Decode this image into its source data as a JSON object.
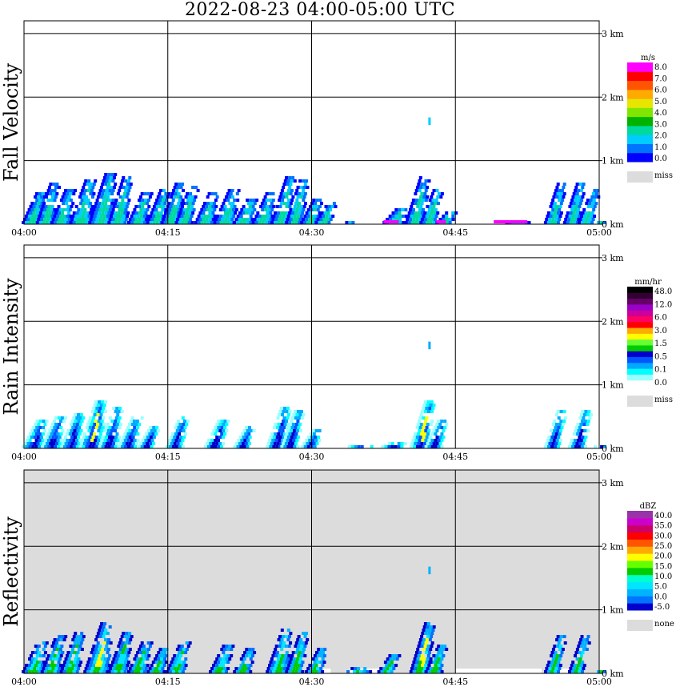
{
  "title": "2022-08-23  04:00-05:00 UTC",
  "chart_data": [
    {
      "type": "heatmap",
      "title": "Fall Velocity",
      "x_ticks": [
        "04:00",
        "04:15",
        "04:30",
        "04:45",
        "05:00"
      ],
      "y_ticks": [
        "0 km",
        "1 km",
        "2 km",
        "3 km"
      ],
      "ylim": [
        0,
        3.2
      ],
      "xlim_minutes": [
        0,
        60
      ],
      "grid": true,
      "background": "#ffffff",
      "legend": {
        "unit": "m/s",
        "placement": "right",
        "colors": [
          "#0000ff",
          "#0073ff",
          "#00ccff",
          "#00d99e",
          "#00b300",
          "#80e600",
          "#e6e600",
          "#ffaa00",
          "#ff5500",
          "#ff0000",
          "#ff00ff"
        ],
        "labels": [
          "0.0",
          "1.0",
          "2.0",
          "3.0",
          "4.0",
          "5.0",
          "6.0",
          "7.0",
          "8.0"
        ],
        "missing_label": "miss",
        "missing_color": "#dcdcdc"
      },
      "echo": {
        "colors": [
          "#0000ff",
          "#0073ff",
          "#00ccff",
          "#00d99e"
        ],
        "cap": "#ff00ff",
        "cells": [
          {
            "t": 0,
            "h": 0.55,
            "w": 1.2
          },
          {
            "t": 1.5,
            "h": 0.7,
            "w": 1.0
          },
          {
            "t": 3,
            "h": 0.6,
            "w": 1.2
          },
          {
            "t": 5,
            "h": 0.75,
            "w": 1.4
          },
          {
            "t": 7,
            "h": 0.85,
            "w": 1.6
          },
          {
            "t": 9,
            "h": 0.8,
            "w": 1.2
          },
          {
            "t": 11,
            "h": 0.55,
            "w": 1.2
          },
          {
            "t": 13,
            "h": 0.6,
            "w": 1.0
          },
          {
            "t": 14.5,
            "h": 0.7,
            "w": 1.2
          },
          {
            "t": 16,
            "h": 0.65,
            "w": 1.0
          },
          {
            "t": 18,
            "h": 0.55,
            "w": 1.2
          },
          {
            "t": 20,
            "h": 0.6,
            "w": 1.4
          },
          {
            "t": 22,
            "h": 0.45,
            "w": 1.2
          },
          {
            "t": 24,
            "h": 0.55,
            "w": 1.2
          },
          {
            "t": 26,
            "h": 0.8,
            "w": 1.2
          },
          {
            "t": 27.5,
            "h": 0.75,
            "w": 1.0
          },
          {
            "t": 29,
            "h": 0.45,
            "w": 1.0
          },
          {
            "t": 30.5,
            "h": 0.4,
            "w": 1.0
          },
          {
            "t": 33,
            "h": 0.08,
            "w": 0.4
          },
          {
            "t": 37.5,
            "h": 0.3,
            "w": 1.6
          },
          {
            "t": 40,
            "h": 0.8,
            "w": 1.2
          },
          {
            "t": 41.5,
            "h": 0.6,
            "w": 1.0
          },
          {
            "t": 43,
            "h": 0.25,
            "w": 1.0
          },
          {
            "t": 49,
            "h": 0.08,
            "w": 3.5
          },
          {
            "t": 54.5,
            "h": 0.7,
            "w": 0.8
          },
          {
            "t": 56.5,
            "h": 0.7,
            "w": 0.8
          },
          {
            "t": 58,
            "h": 0.6,
            "w": 0.8
          },
          {
            "t": 59,
            "h": 0.1,
            "w": 1.0
          }
        ],
        "isolated": [
          {
            "t": 42.3,
            "h": 1.62,
            "d": 0.12
          }
        ]
      }
    },
    {
      "type": "heatmap",
      "title": "Rain Intensity",
      "x_ticks": [
        "04:00",
        "04:15",
        "04:30",
        "04:45",
        "05:00"
      ],
      "y_ticks": [
        "0 km",
        "1 km",
        "2 km",
        "3 km"
      ],
      "ylim": [
        0,
        3.2
      ],
      "xlim_minutes": [
        0,
        60
      ],
      "grid": true,
      "background": "#ffffff",
      "legend": {
        "unit": "mm/hr",
        "placement": "right",
        "colors": [
          "#ffffff",
          "#99ffff",
          "#00ffff",
          "#00aaff",
          "#0055ff",
          "#0000cc",
          "#00cc00",
          "#66ff33",
          "#ffff00",
          "#ffaa00",
          "#ff0000",
          "#ff0066",
          "#cc0099",
          "#9900cc",
          "#660066",
          "#330033",
          "#000000"
        ],
        "labels": [
          "0.0",
          "0.1",
          "0.5",
          "1.5",
          "3.0",
          "6.0",
          "12.0",
          "48.0"
        ],
        "missing_label": "miss",
        "missing_color": "#dcdcdc"
      },
      "echo": {
        "colors": [
          "#99ffff",
          "#00ffff",
          "#00aaff",
          "#0055ff",
          "#0000cc"
        ],
        "core": "#ffff00",
        "cells": [
          {
            "t": 0,
            "h": 0.5,
            "w": 1.4
          },
          {
            "t": 2,
            "h": 0.55,
            "w": 1.2
          },
          {
            "t": 4,
            "h": 0.6,
            "w": 1.2
          },
          {
            "t": 6,
            "h": 0.8,
            "w": 1.6
          },
          {
            "t": 8,
            "h": 0.7,
            "w": 1.2
          },
          {
            "t": 10,
            "h": 0.55,
            "w": 1.2
          },
          {
            "t": 12,
            "h": 0.4,
            "w": 1.0
          },
          {
            "t": 15,
            "h": 0.55,
            "w": 1.0
          },
          {
            "t": 19,
            "h": 0.5,
            "w": 1.2
          },
          {
            "t": 22,
            "h": 0.4,
            "w": 1.0
          },
          {
            "t": 25.5,
            "h": 0.7,
            "w": 1.2
          },
          {
            "t": 27,
            "h": 0.65,
            "w": 1.0
          },
          {
            "t": 29,
            "h": 0.35,
            "w": 1.0
          },
          {
            "t": 33,
            "h": 0.1,
            "w": 3.0
          },
          {
            "t": 37,
            "h": 0.15,
            "w": 2.0
          },
          {
            "t": 40.5,
            "h": 0.8,
            "w": 1.2
          },
          {
            "t": 42,
            "h": 0.5,
            "w": 1.0
          },
          {
            "t": 45,
            "h": 0.05,
            "w": 8.0
          },
          {
            "t": 54.5,
            "h": 0.65,
            "w": 0.8
          },
          {
            "t": 57,
            "h": 0.65,
            "w": 1.0
          },
          {
            "t": 59,
            "h": 0.1,
            "w": 1.0
          }
        ],
        "isolated": [
          {
            "t": 42.3,
            "h": 1.62,
            "d": 0.12
          }
        ]
      }
    },
    {
      "type": "heatmap",
      "title": "Reflectivity",
      "x_ticks": [
        "04:00",
        "04:15",
        "04:30",
        "04:45",
        "05:00"
      ],
      "y_ticks": [
        "0 km",
        "1 km",
        "2 km",
        "3 km"
      ],
      "ylim": [
        0,
        3.2
      ],
      "xlim_minutes": [
        0,
        60
      ],
      "grid": true,
      "background": "#dcdcdc",
      "legend": {
        "unit": "dBZ",
        "placement": "right",
        "colors": [
          "#0000cc",
          "#0073ff",
          "#00b3ff",
          "#00e6ff",
          "#00ffcc",
          "#00cc00",
          "#66ff00",
          "#ffff00",
          "#ffaa00",
          "#ff5500",
          "#ff0000",
          "#cc0066",
          "#cc00cc",
          "#9933aa"
        ],
        "labels": [
          "-5.0",
          "0.0",
          "5.0",
          "10.0",
          "15.0",
          "20.0",
          "25.0",
          "30.0",
          "35.0",
          "40.0"
        ],
        "missing_label": "none",
        "missing_color": "#dcdcdc"
      },
      "echo": {
        "colors": [
          "#0000cc",
          "#0073ff",
          "#00b3ff",
          "#00e6ff",
          "#00cc00"
        ],
        "core": "#ffff00",
        "cells": [
          {
            "t": 0,
            "h": 0.55,
            "w": 1.4
          },
          {
            "t": 2,
            "h": 0.65,
            "w": 1.2
          },
          {
            "t": 4,
            "h": 0.7,
            "w": 1.2
          },
          {
            "t": 6.5,
            "h": 0.85,
            "w": 1.8
          },
          {
            "t": 9,
            "h": 0.7,
            "w": 1.2
          },
          {
            "t": 11,
            "h": 0.55,
            "w": 1.2
          },
          {
            "t": 13,
            "h": 0.45,
            "w": 1.0
          },
          {
            "t": 15,
            "h": 0.55,
            "w": 1.2
          },
          {
            "t": 19.5,
            "h": 0.5,
            "w": 1.2
          },
          {
            "t": 22,
            "h": 0.45,
            "w": 1.0
          },
          {
            "t": 25.5,
            "h": 0.75,
            "w": 1.4
          },
          {
            "t": 27.5,
            "h": 0.7,
            "w": 1.0
          },
          {
            "t": 29.5,
            "h": 0.45,
            "w": 1.0
          },
          {
            "t": 33,
            "h": 0.15,
            "w": 2.5
          },
          {
            "t": 37,
            "h": 0.35,
            "w": 1.0
          },
          {
            "t": 40.5,
            "h": 0.85,
            "w": 1.2
          },
          {
            "t": 42,
            "h": 0.5,
            "w": 1.0
          },
          {
            "t": 54.5,
            "h": 0.65,
            "w": 0.8
          },
          {
            "t": 57,
            "h": 0.65,
            "w": 0.8
          },
          {
            "t": 59,
            "h": 0.1,
            "w": 1.0
          }
        ],
        "white_gaps": [
          {
            "t": 30.5,
            "w": 1.5
          },
          {
            "t": 34,
            "w": 3.0
          },
          {
            "t": 45,
            "w": 9.0
          },
          {
            "t": 55.5,
            "w": 2.5
          }
        ],
        "isolated": [
          {
            "t": 42.3,
            "h": 1.62,
            "d": 0.12
          }
        ]
      }
    }
  ]
}
